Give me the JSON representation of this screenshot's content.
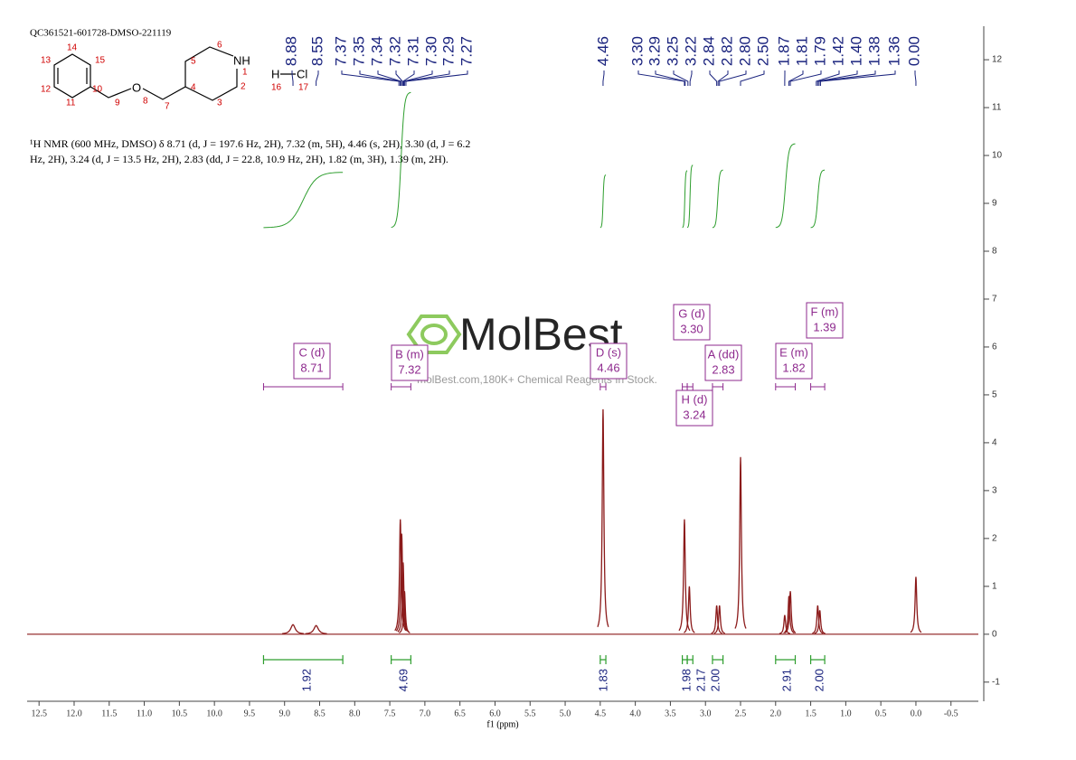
{
  "header": {
    "sample_id": "QC361521-601728-DMSO-221119"
  },
  "structure": {
    "atoms": [
      "14",
      "13",
      "15",
      "12",
      "10",
      "11",
      "9",
      "O",
      "8",
      "7",
      "4",
      "5",
      "3",
      "6",
      "NH",
      "1",
      "2",
      "H",
      "Cl",
      "16",
      "17"
    ]
  },
  "nmr_text": [
    "¹H NMR (600 MHz, DMSO) δ 8.71 (d, J = 197.6 Hz, 2H), 7.32 (m, 5H), 4.46 (s, 2H), 3.30 (d, J = 6.2",
    "Hz, 2H), 3.24 (d, J = 13.5 Hz, 2H), 2.83 (dd, J = 22.8, 10.9 Hz, 2H), 1.82 (m, 3H), 1.39 (m, 2H)."
  ],
  "watermark": {
    "brand": "MolBest",
    "tagline": "molBest.com,180K+ Chemical Reagents In Stock."
  },
  "chart_data": {
    "type": "nmr",
    "x_label": "f1 (ppm)",
    "xlim": [
      12.67,
      -0.89
    ],
    "xticks": [
      12.5,
      {
        "value": 12,
        "label": "12.0"
      },
      11.5,
      {
        "value": 11,
        "label": "11.0"
      },
      10.5,
      {
        "value": 10,
        "label": "10.0"
      },
      9.5,
      {
        "value": 9,
        "label": "9.0"
      },
      8.5,
      {
        "value": 8,
        "label": "8.0"
      },
      7.5,
      {
        "value": 7,
        "label": "7.0"
      },
      6.5,
      {
        "value": 6,
        "label": "6.0"
      },
      5.5,
      {
        "value": 5,
        "label": "5.0"
      },
      4.5,
      {
        "value": 4,
        "label": "4.0"
      },
      3.5,
      {
        "value": 3,
        "label": "3.0"
      },
      2.5,
      {
        "value": 2,
        "label": "2.0"
      },
      1.5,
      {
        "value": 1,
        "label": "1.0"
      },
      0.5,
      {
        "value": 0,
        "label": "0.0"
      },
      -0.5
    ],
    "ylim": [
      -1.4,
      12.7
    ],
    "yticks": [
      -1,
      0,
      1,
      2,
      3,
      4,
      5,
      6,
      7,
      8,
      9,
      10,
      11,
      12
    ],
    "color": "#8b1a1a",
    "peaks": {
      "x": [
        8.88,
        8.55,
        7.35,
        7.33,
        7.31,
        7.29,
        4.46,
        3.3,
        3.23,
        2.84,
        2.8,
        2.5,
        1.87,
        1.81,
        1.79,
        1.4,
        1.37,
        0.0
      ],
      "values": [
        0.2,
        0.18,
        2.4,
        2.1,
        1.5,
        0.9,
        4.7,
        2.4,
        1.0,
        0.6,
        0.6,
        3.7,
        0.4,
        0.8,
        0.9,
        0.6,
        0.5,
        1.2
      ]
    },
    "peak_labels": [
      8.88,
      8.55,
      7.37,
      7.35,
      7.34,
      7.32,
      7.31,
      {
        "value": 7.3,
        "label": "7.30"
      },
      7.29,
      7.27,
      4.46,
      {
        "value": 3.3,
        "label": "3.30"
      },
      3.29,
      3.25,
      3.22,
      2.84,
      2.82,
      {
        "value": 2.8,
        "label": "2.80"
      },
      {
        "value": 2.5,
        "label": "2.50"
      },
      1.87,
      1.81,
      1.79,
      1.42,
      {
        "value": 1.4,
        "label": "1.40"
      },
      1.38,
      1.36,
      {
        "value": 0,
        "label": "0.00"
      }
    ],
    "integrals": {
      "regions": [
        [
          9.3,
          8.17
        ],
        [
          7.48,
          7.2
        ],
        [
          4.5,
          4.42
        ],
        [
          3.33,
          3.26
        ],
        [
          3.26,
          3.18
        ],
        [
          2.9,
          2.75
        ],
        [
          2.0,
          1.72
        ],
        [
          1.5,
          1.3
        ]
      ],
      "values": [
        1.92,
        4.69,
        1.83,
        1.98,
        2.17,
        {
          "value": 2,
          "label": "2.00"
        },
        2.91,
        {
          "value": 2,
          "label": "2.00"
        }
      ]
    },
    "multiplets": [
      {
        "label": "C (d)",
        "shift": 8.71
      },
      {
        "label": "B (m)",
        "shift": 7.32
      },
      {
        "label": "D (s)",
        "shift": 4.46
      },
      {
        "label": "G (d)",
        "shift": {
          "value": 3.3,
          "label": "3.30"
        }
      },
      {
        "label": "H (d)",
        "shift": 3.24
      },
      {
        "label": "A (dd)",
        "shift": 2.83
      },
      {
        "label": "E (m)",
        "shift": 1.82
      },
      {
        "label": "F (m)",
        "shift": 1.39
      }
    ]
  }
}
